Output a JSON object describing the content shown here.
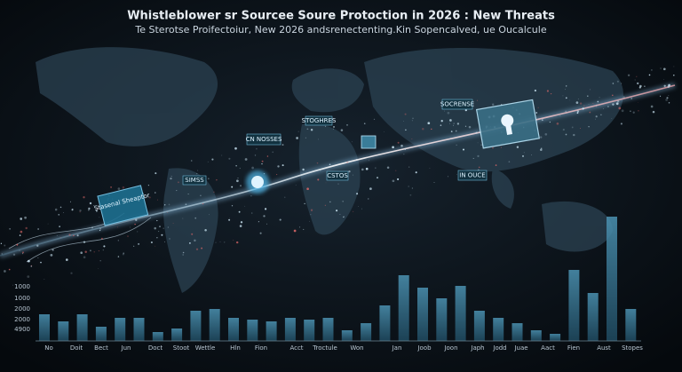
{
  "header": {
    "title": "Whistleblower sr Sourcee Soure Protoction in 2026 : New Threats",
    "subtitle": "Te Sterotse Proifectoiur, New 2026 andsrenectenting.Kin Sopencalved, ue Oucalcule"
  },
  "map_labels": [
    "Stasenal Sheaptor",
    "CN NOSSES",
    "STOGHRES",
    "SOCRENSE",
    "IN OUCE",
    "SIMSS",
    "CSTOS"
  ],
  "axis": {
    "y_labels": [
      "1000",
      "1000",
      "2000",
      "2000",
      "4900"
    ],
    "x_labels": [
      "No",
      "Doit",
      "Bect",
      "Jun",
      "Doct",
      "Stoot",
      "Wettle",
      "Hln",
      "Fion",
      "Acct",
      "Troctule",
      "Won",
      "Jan",
      "Joob",
      "Joon",
      "Japh",
      "Jodd",
      "Juae",
      "Aact",
      "Fien",
      "Aust",
      "Stopes"
    ]
  }
}
